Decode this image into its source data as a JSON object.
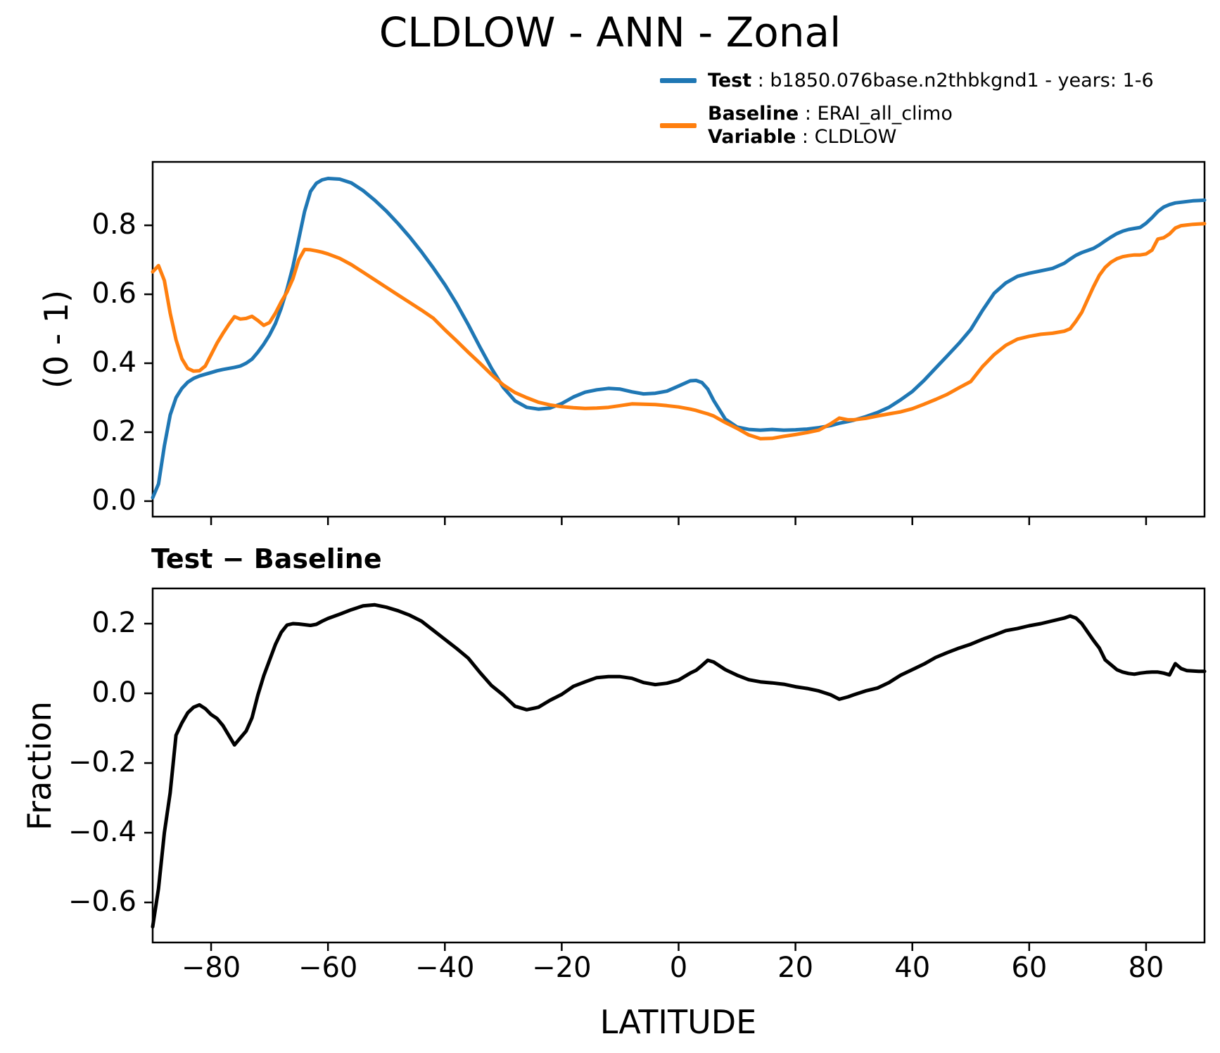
{
  "title": "CLDLOW - ANN - Zonal",
  "legend": {
    "items": [
      {
        "color": "#1f77b4",
        "lines": [
          {
            "bold": "Test",
            "rest": " : b1850.076base.n2thbkgnd1 - years: 1-6"
          }
        ]
      },
      {
        "color": "#ff7f0e",
        "lines": [
          {
            "bold": "Baseline",
            "rest": " : ERAI_all_climo"
          },
          {
            "bold": "Variable",
            "rest": " : CLDLOW"
          }
        ]
      }
    ]
  },
  "diff_title": {
    "bold_left": "Test",
    "separator": " − ",
    "bold_right": "Baseline"
  },
  "chart_data": [
    {
      "type": "line",
      "title": "CLDLOW - ANN - Zonal",
      "ylabel": "(0 - 1)",
      "xlabel": "",
      "xlim": [
        -90,
        90
      ],
      "ylim": [
        -0.045,
        0.984
      ],
      "grid": false,
      "legend_position": "top-right",
      "yticks": [
        0.0,
        0.2,
        0.4,
        0.6,
        0.8
      ],
      "yticklabels": [
        "0.0",
        "0.2",
        "0.4",
        "0.6",
        "0.8"
      ],
      "xticks": [
        -80,
        -60,
        -40,
        -20,
        0,
        20,
        40,
        60,
        80
      ],
      "x": [
        -90,
        -89,
        -88,
        -87,
        -86,
        -85,
        -84,
        -83,
        -82,
        -81,
        -80,
        -79,
        -78,
        -77,
        -76,
        -75,
        -74,
        -73,
        -72,
        -71,
        -70,
        -69,
        -68,
        -67,
        -66,
        -65,
        -64,
        -63,
        -62,
        -61,
        -60,
        -58,
        -56,
        -54,
        -52,
        -50,
        -48,
        -46,
        -44,
        -42,
        -40,
        -38,
        -36,
        -34,
        -32,
        -30,
        -28,
        -26,
        -24,
        -22,
        -20,
        -18,
        -16,
        -14,
        -12,
        -10,
        -8,
        -6,
        -4,
        -2,
        0,
        2,
        3,
        4,
        5,
        6,
        8,
        10,
        12,
        14,
        16,
        18,
        20,
        22,
        24,
        26,
        27.5,
        29,
        30,
        32,
        34,
        36,
        38,
        40,
        42,
        44,
        46,
        48,
        50,
        52,
        54,
        56,
        58,
        60,
        62,
        64,
        66,
        67,
        68,
        69,
        70,
        71,
        72,
        73,
        74,
        75,
        76,
        77,
        78,
        79,
        80,
        81,
        82,
        83,
        84,
        85,
        86,
        87,
        88,
        89,
        90
      ],
      "series": [
        {
          "name": "Test",
          "label": "b1850.076base.n2thbkgnd1 - years: 1-6",
          "color": "#1f77b4",
          "values": [
            0.01,
            0.05,
            0.16,
            0.25,
            0.3,
            0.327,
            0.345,
            0.356,
            0.363,
            0.368,
            0.373,
            0.378,
            0.382,
            0.385,
            0.388,
            0.392,
            0.4,
            0.412,
            0.432,
            0.455,
            0.482,
            0.515,
            0.56,
            0.615,
            0.68,
            0.76,
            0.84,
            0.898,
            0.922,
            0.932,
            0.936,
            0.934,
            0.923,
            0.901,
            0.873,
            0.841,
            0.805,
            0.766,
            0.723,
            0.677,
            0.628,
            0.573,
            0.512,
            0.447,
            0.385,
            0.33,
            0.291,
            0.272,
            0.267,
            0.27,
            0.283,
            0.302,
            0.316,
            0.323,
            0.327,
            0.325,
            0.317,
            0.311,
            0.313,
            0.319,
            0.334,
            0.349,
            0.35,
            0.344,
            0.325,
            0.292,
            0.238,
            0.215,
            0.208,
            0.206,
            0.208,
            0.206,
            0.207,
            0.209,
            0.213,
            0.219,
            0.226,
            0.231,
            0.235,
            0.245,
            0.257,
            0.272,
            0.294,
            0.318,
            0.35,
            0.386,
            0.422,
            0.458,
            0.498,
            0.553,
            0.603,
            0.633,
            0.652,
            0.661,
            0.668,
            0.675,
            0.69,
            0.702,
            0.713,
            0.721,
            0.727,
            0.733,
            0.743,
            0.755,
            0.766,
            0.776,
            0.783,
            0.788,
            0.791,
            0.794,
            0.806,
            0.822,
            0.84,
            0.853,
            0.86,
            0.865,
            0.867,
            0.869,
            0.871,
            0.872,
            0.873
          ]
        },
        {
          "name": "Baseline",
          "label": "ERAI_all_climo",
          "color": "#ff7f0e",
          "values": [
            0.665,
            0.683,
            0.64,
            0.545,
            0.468,
            0.413,
            0.385,
            0.377,
            0.378,
            0.392,
            0.425,
            0.458,
            0.486,
            0.512,
            0.535,
            0.528,
            0.53,
            0.536,
            0.524,
            0.51,
            0.518,
            0.545,
            0.578,
            0.607,
            0.645,
            0.7,
            0.73,
            0.729,
            0.726,
            0.722,
            0.717,
            0.704,
            0.686,
            0.664,
            0.642,
            0.62,
            0.598,
            0.576,
            0.554,
            0.531,
            0.497,
            0.465,
            0.432,
            0.4,
            0.367,
            0.337,
            0.315,
            0.3,
            0.287,
            0.279,
            0.274,
            0.271,
            0.269,
            0.27,
            0.272,
            0.277,
            0.282,
            0.281,
            0.28,
            0.277,
            0.273,
            0.267,
            0.263,
            0.258,
            0.253,
            0.247,
            0.228,
            0.211,
            0.192,
            0.181,
            0.182,
            0.188,
            0.193,
            0.199,
            0.206,
            0.224,
            0.241,
            0.236,
            0.236,
            0.24,
            0.247,
            0.253,
            0.259,
            0.268,
            0.281,
            0.295,
            0.31,
            0.329,
            0.347,
            0.39,
            0.425,
            0.452,
            0.47,
            0.478,
            0.484,
            0.487,
            0.493,
            0.5,
            0.522,
            0.548,
            0.585,
            0.622,
            0.655,
            0.678,
            0.693,
            0.703,
            0.709,
            0.712,
            0.714,
            0.714,
            0.717,
            0.728,
            0.76,
            0.764,
            0.775,
            0.792,
            0.799,
            0.801,
            0.803,
            0.804,
            0.805
          ]
        }
      ]
    },
    {
      "type": "line",
      "title": "Test − Baseline",
      "ylabel": "Fraction",
      "xlabel": "LATITUDE",
      "xlim": [
        -90,
        90
      ],
      "ylim": [
        -0.715,
        0.301
      ],
      "grid": false,
      "yticks": [
        0.2,
        0.0,
        -0.2,
        -0.4,
        -0.6
      ],
      "yticklabels": [
        "0.2",
        "0.0",
        "−0.2",
        "−0.4",
        "−0.6"
      ],
      "xticks": [
        -80,
        -60,
        -40,
        -20,
        0,
        20,
        40,
        60,
        80
      ],
      "xticklabels": [
        "−80",
        "−60",
        "−40",
        "−20",
        "0",
        "20",
        "40",
        "60",
        "80"
      ],
      "x": [
        -90,
        -89,
        -88,
        -87,
        -86,
        -85,
        -84,
        -83,
        -82,
        -81,
        -80,
        -79,
        -78,
        -77,
        -76,
        -75,
        -74,
        -73,
        -72,
        -71,
        -70,
        -69,
        -68,
        -67,
        -66,
        -65,
        -64,
        -63,
        -62,
        -61,
        -60,
        -58,
        -56,
        -54,
        -52,
        -50,
        -48,
        -46,
        -44,
        -42,
        -40,
        -38,
        -36,
        -34,
        -32,
        -30,
        -28,
        -26,
        -24,
        -22,
        -20,
        -18,
        -16,
        -14,
        -12,
        -10,
        -8,
        -6,
        -4,
        -2,
        0,
        2,
        3,
        4,
        5,
        6,
        8,
        10,
        12,
        14,
        16,
        18,
        20,
        22,
        24,
        26,
        27.5,
        29,
        30,
        32,
        34,
        36,
        38,
        40,
        42,
        44,
        46,
        48,
        50,
        52,
        54,
        56,
        58,
        60,
        62,
        64,
        66,
        67,
        68,
        69,
        70,
        71,
        72,
        73,
        74,
        75,
        76,
        77,
        78,
        79,
        80,
        81,
        82,
        83,
        84,
        85,
        86,
        87,
        88,
        89,
        90
      ],
      "series": [
        {
          "name": "Test minus Baseline",
          "color": "#000000",
          "values": [
            -0.67,
            -0.56,
            -0.4,
            -0.285,
            -0.12,
            -0.085,
            -0.056,
            -0.04,
            -0.033,
            -0.044,
            -0.061,
            -0.072,
            -0.092,
            -0.12,
            -0.148,
            -0.128,
            -0.108,
            -0.07,
            -0.005,
            0.05,
            0.095,
            0.14,
            0.175,
            0.196,
            0.2,
            0.199,
            0.197,
            0.195,
            0.198,
            0.207,
            0.215,
            0.227,
            0.24,
            0.251,
            0.254,
            0.247,
            0.237,
            0.224,
            0.207,
            0.181,
            0.155,
            0.129,
            0.101,
            0.06,
            0.022,
            -0.005,
            -0.037,
            -0.047,
            -0.04,
            -0.02,
            -0.003,
            0.02,
            0.033,
            0.045,
            0.048,
            0.048,
            0.043,
            0.031,
            0.025,
            0.029,
            0.038,
            0.058,
            0.066,
            0.08,
            0.095,
            0.09,
            0.068,
            0.052,
            0.039,
            0.033,
            0.03,
            0.026,
            0.019,
            0.014,
            0.007,
            -0.004,
            -0.017,
            -0.01,
            -0.004,
            0.007,
            0.015,
            0.031,
            0.052,
            0.068,
            0.084,
            0.103,
            0.117,
            0.13,
            0.141,
            0.155,
            0.167,
            0.18,
            0.186,
            0.194,
            0.2,
            0.208,
            0.216,
            0.222,
            0.216,
            0.2,
            0.176,
            0.152,
            0.13,
            0.096,
            0.082,
            0.068,
            0.061,
            0.057,
            0.055,
            0.058,
            0.06,
            0.061,
            0.061,
            0.058,
            0.053,
            0.085,
            0.071,
            0.065,
            0.064,
            0.063,
            0.063
          ]
        }
      ]
    }
  ]
}
